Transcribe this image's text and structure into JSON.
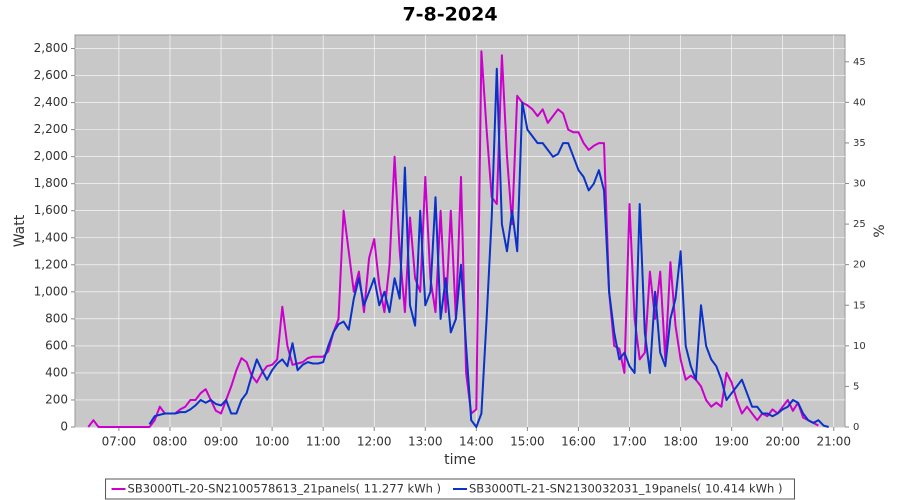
{
  "chart_data": {
    "type": "line",
    "title": "7-8-2024",
    "x_label": "time",
    "y_label": "Watt",
    "y2_label": "%",
    "x": [
      6.4,
      6.5,
      6.6,
      6.7,
      6.8,
      6.9,
      7.0,
      7.1,
      7.2,
      7.3,
      7.4,
      7.5,
      7.6,
      7.7,
      7.8,
      7.9,
      8.0,
      8.1,
      8.2,
      8.3,
      8.4,
      8.5,
      8.6,
      8.7,
      8.8,
      8.9,
      9.0,
      9.1,
      9.2,
      9.3,
      9.4,
      9.5,
      9.6,
      9.7,
      9.8,
      9.9,
      10.0,
      10.1,
      10.2,
      10.3,
      10.4,
      10.5,
      10.6,
      10.7,
      10.8,
      10.9,
      11.0,
      11.1,
      11.2,
      11.3,
      11.4,
      11.5,
      11.6,
      11.7,
      11.8,
      11.9,
      12.0,
      12.1,
      12.2,
      12.3,
      12.4,
      12.5,
      12.6,
      12.7,
      12.8,
      12.9,
      13.0,
      13.1,
      13.2,
      13.3,
      13.4,
      13.5,
      13.6,
      13.7,
      13.8,
      13.9,
      14.0,
      14.1,
      14.2,
      14.3,
      14.4,
      14.5,
      14.6,
      14.7,
      14.8,
      14.9,
      15.0,
      15.1,
      15.2,
      15.3,
      15.4,
      15.5,
      15.6,
      15.7,
      15.8,
      15.9,
      16.0,
      16.1,
      16.2,
      16.3,
      16.4,
      16.5,
      16.6,
      16.7,
      16.8,
      16.9,
      17.0,
      17.1,
      17.2,
      17.3,
      17.4,
      17.5,
      17.6,
      17.7,
      17.8,
      17.9,
      18.0,
      18.1,
      18.2,
      18.3,
      18.4,
      18.5,
      18.6,
      18.7,
      18.8,
      18.9,
      19.0,
      19.1,
      19.2,
      19.3,
      19.4,
      19.5,
      19.6,
      19.7,
      19.8,
      19.9,
      20.0,
      20.1,
      20.2,
      20.3,
      20.4,
      20.5,
      20.6,
      20.7,
      20.8,
      20.9
    ],
    "series": [
      {
        "name": "SB3000TL-20-SN2100578613_21panels( 11.277 kWh )",
        "color": "#cc00cc",
        "values": [
          0,
          50,
          0,
          0,
          0,
          0,
          0,
          0,
          0,
          0,
          0,
          0,
          0,
          50,
          150,
          100,
          100,
          100,
          130,
          150,
          200,
          200,
          250,
          280,
          200,
          120,
          100,
          200,
          300,
          420,
          510,
          480,
          380,
          330,
          400,
          450,
          460,
          500,
          890,
          600,
          460,
          470,
          480,
          510,
          520,
          520,
          520,
          560,
          700,
          800,
          1600,
          1300,
          1000,
          1150,
          850,
          1250,
          1390,
          1050,
          850,
          1200,
          2000,
          1300,
          850,
          1550,
          1100,
          1000,
          1850,
          1100,
          850,
          1600,
          850,
          1600,
          800,
          1850,
          400,
          100,
          130,
          2780,
          2200,
          1700,
          1650,
          2750,
          2000,
          1500,
          2450,
          2400,
          2380,
          2350,
          2300,
          2350,
          2250,
          2300,
          2350,
          2320,
          2200,
          2180,
          2180,
          2100,
          2050,
          2080,
          2100,
          2100,
          1000,
          600,
          580,
          400,
          1650,
          800,
          500,
          550,
          1150,
          800,
          1150,
          500,
          1220,
          750,
          500,
          350,
          380,
          350,
          300,
          200,
          150,
          180,
          150,
          400,
          330,
          200,
          100,
          150,
          100,
          50,
          100,
          80,
          130,
          100,
          150,
          200,
          120,
          180,
          70,
          50,
          30,
          10,
          null,
          null
        ]
      },
      {
        "name": "SB3000TL-21-SN2130032031_19panels( 10.414 kWh )",
        "color": "#0a32c8",
        "values": [
          null,
          null,
          null,
          null,
          null,
          null,
          null,
          null,
          null,
          null,
          null,
          null,
          20,
          80,
          90,
          100,
          100,
          100,
          110,
          110,
          130,
          160,
          200,
          180,
          200,
          170,
          160,
          200,
          100,
          100,
          200,
          250,
          380,
          500,
          420,
          350,
          420,
          470,
          500,
          450,
          620,
          420,
          460,
          480,
          470,
          470,
          480,
          600,
          700,
          760,
          780,
          720,
          950,
          1100,
          900,
          1000,
          1100,
          900,
          1000,
          850,
          1100,
          950,
          1920,
          900,
          750,
          1600,
          900,
          1000,
          1700,
          800,
          1100,
          700,
          800,
          1200,
          600,
          50,
          0,
          100,
          800,
          1550,
          2650,
          1500,
          1300,
          1600,
          1300,
          2400,
          2200,
          2150,
          2100,
          2100,
          2050,
          2000,
          2020,
          2100,
          2100,
          2000,
          1900,
          1850,
          1750,
          1800,
          1900,
          1750,
          1000,
          700,
          500,
          550,
          450,
          400,
          1650,
          700,
          400,
          1000,
          550,
          450,
          800,
          950,
          1300,
          600,
          450,
          350,
          900,
          600,
          500,
          450,
          350,
          200,
          250,
          300,
          350,
          250,
          150,
          150,
          100,
          100,
          80,
          100,
          130,
          150,
          200,
          180,
          100,
          50,
          30,
          50,
          10,
          0
        ]
      }
    ],
    "xlim": [
      6.14,
      21.22
    ],
    "xticks": [
      {
        "value": 7,
        "label": "07:00"
      },
      {
        "value": 8,
        "label": "08:00"
      },
      {
        "value": 9,
        "label": "09:00"
      },
      {
        "value": 10,
        "label": "10:00"
      },
      {
        "value": 11,
        "label": "11:00"
      },
      {
        "value": 12,
        "label": "12:00"
      },
      {
        "value": 13,
        "label": "13:00"
      },
      {
        "value": 14,
        "label": "14:00"
      },
      {
        "value": 15,
        "label": "15:00"
      },
      {
        "value": 16,
        "label": "16:00"
      },
      {
        "value": 17,
        "label": "17:00"
      },
      {
        "value": 18,
        "label": "18:00"
      },
      {
        "value": 19,
        "label": "19:00"
      },
      {
        "value": 20,
        "label": "20:00"
      },
      {
        "value": 21,
        "label": "21:00"
      }
    ],
    "ylim": [
      0,
      2900
    ],
    "yticks": [
      0,
      200,
      400,
      600,
      800,
      {
        "value": 1000,
        "label": "1,000"
      },
      {
        "value": 1200,
        "label": "1,200"
      },
      {
        "value": 1400,
        "label": "1,400"
      },
      {
        "value": 1600,
        "label": "1,600"
      },
      {
        "value": 1800,
        "label": "1,800"
      },
      {
        "value": 2000,
        "label": "2,000"
      },
      {
        "value": 2200,
        "label": "2,200"
      },
      {
        "value": 2400,
        "label": "2,400"
      },
      {
        "value": 2600,
        "label": "2,600"
      },
      {
        "value": 2800,
        "label": "2,800"
      }
    ],
    "y2lim": [
      0,
      48.3
    ],
    "y2ticks": [
      0,
      5,
      10,
      15,
      20,
      25,
      30,
      35,
      40,
      45
    ],
    "grid": true,
    "legend": "bottom",
    "plot_background": "#c8c8c8"
  }
}
